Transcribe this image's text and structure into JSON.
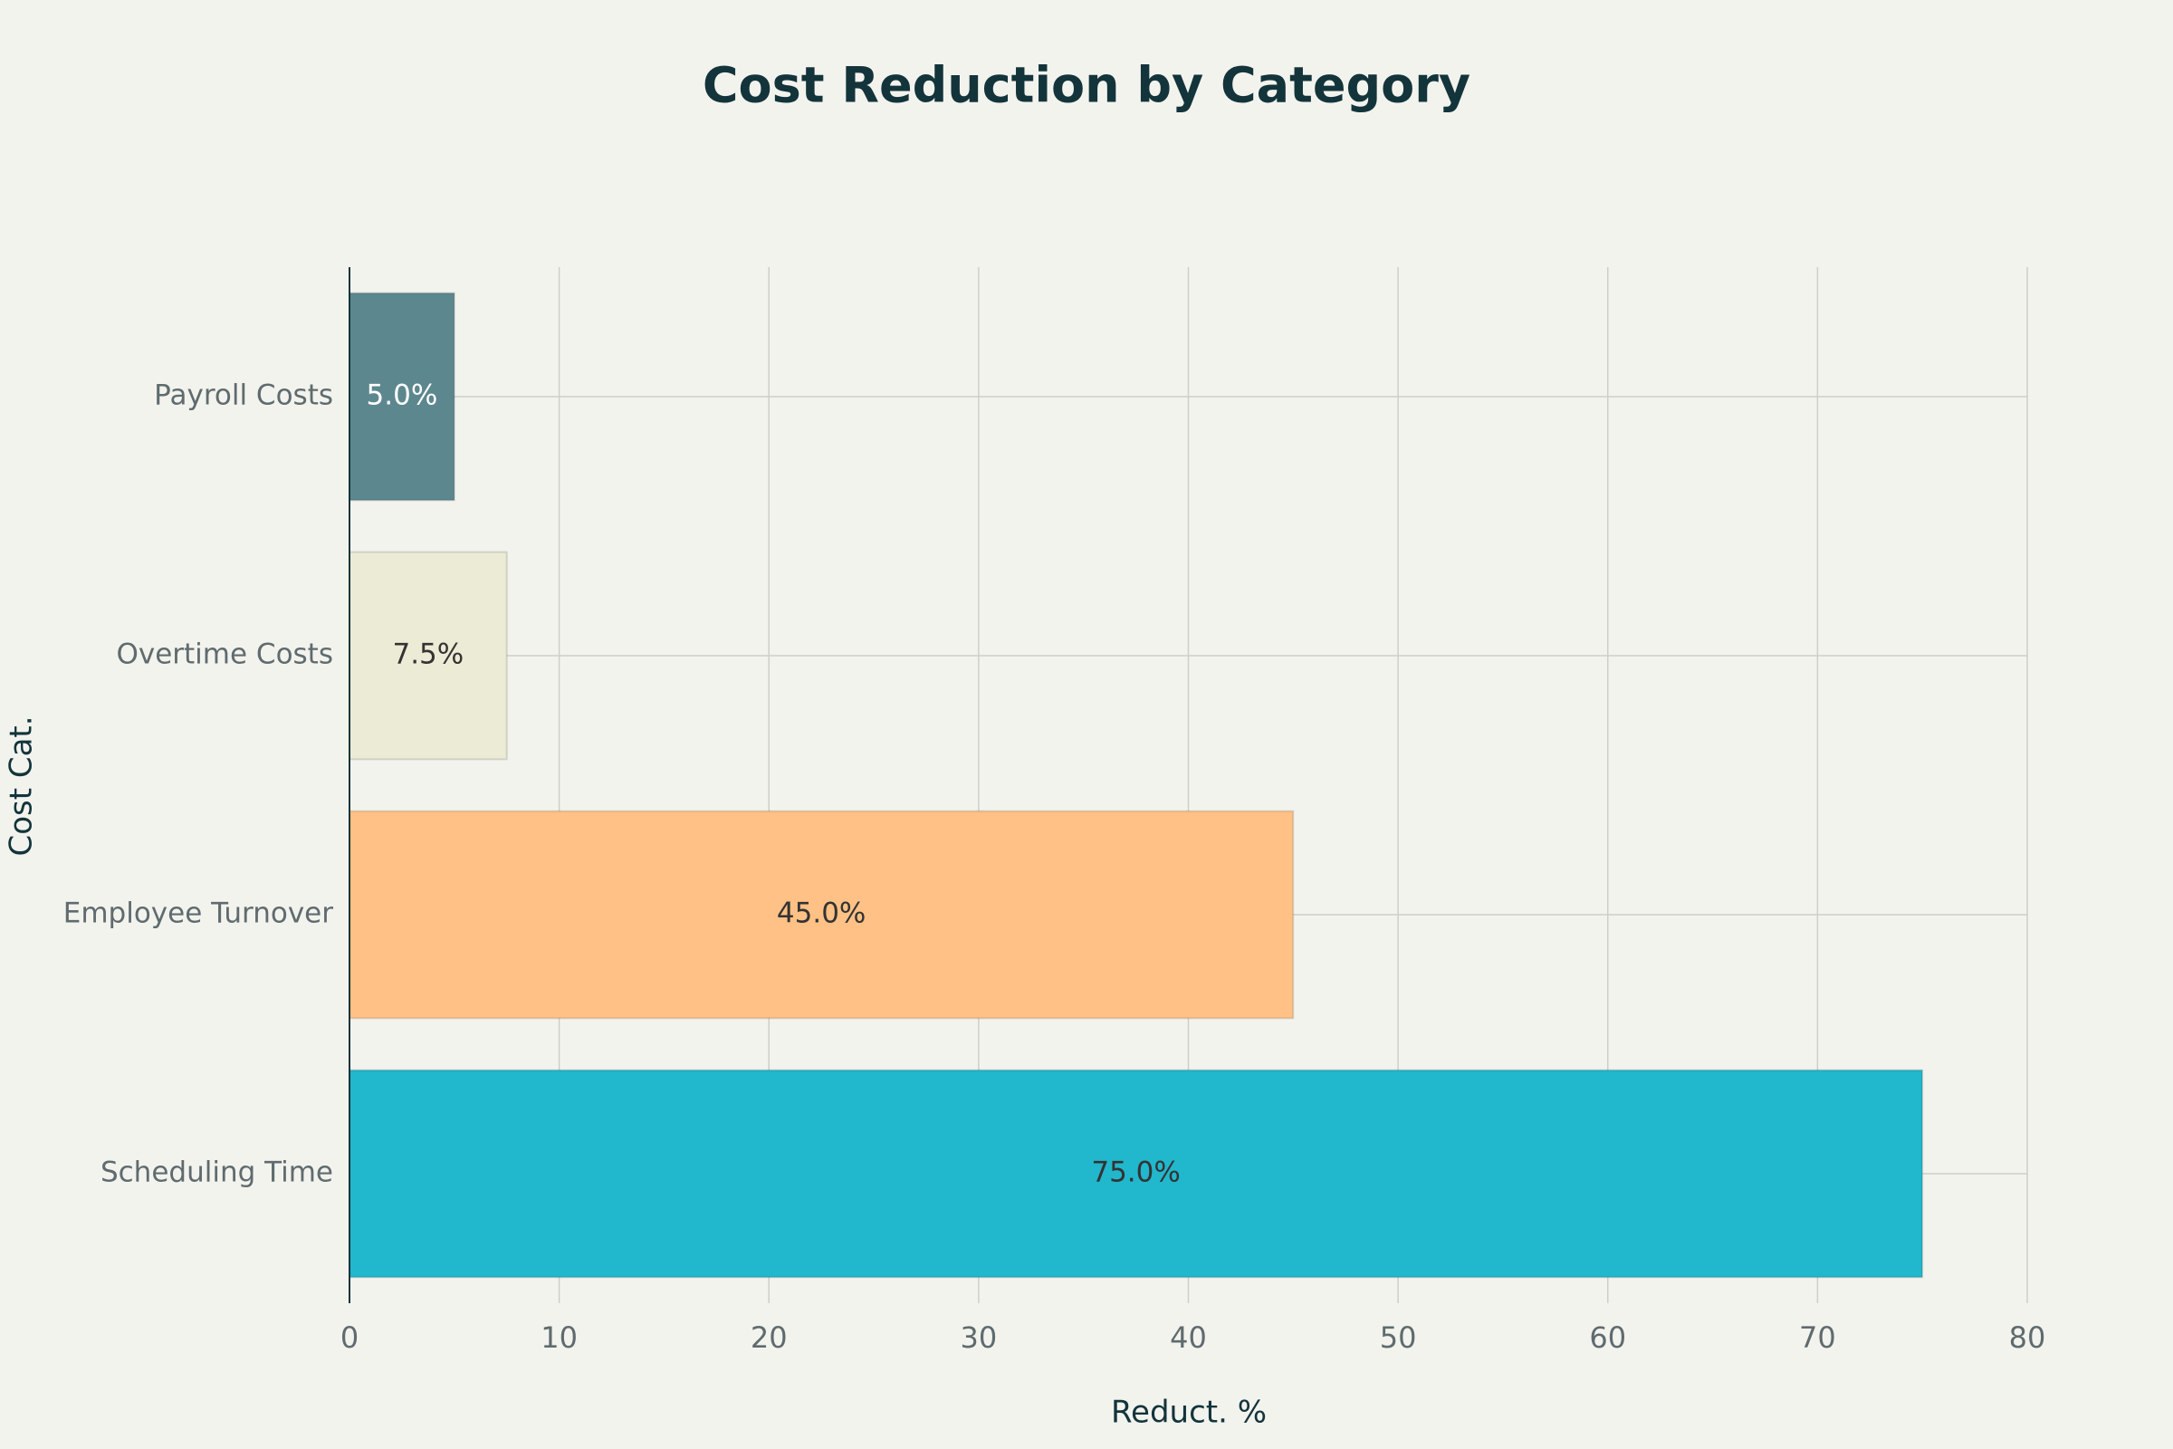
{
  "chart_data": {
    "type": "hbar",
    "title": "Cost Reduction by Category",
    "x_label": "Reduct. %",
    "y_label": "Cost Cat.",
    "categories": [
      "Scheduling Time",
      "Employee Turnover",
      "Overtime Costs",
      "Payroll Costs"
    ],
    "values": [
      75,
      45,
      7.5,
      5
    ],
    "value_labels": [
      "75.0%",
      "45.0%",
      "7.5%",
      "5.0%"
    ],
    "colors": [
      "#21b7cd",
      "#ffc185",
      "#ecebd5",
      "#5d878f"
    ],
    "xlim": [
      0,
      80
    ],
    "xticks": [
      0,
      10,
      20,
      30,
      40,
      50,
      60,
      70,
      80
    ],
    "grid": true
  }
}
